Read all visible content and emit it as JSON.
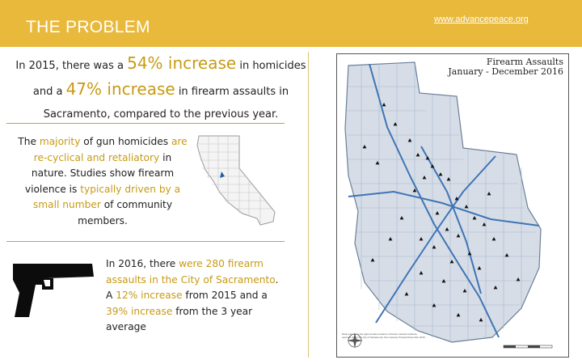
{
  "header": {
    "title": "THE PROBLEM",
    "url": "www.advancepeace.org",
    "color": "#e8b93b"
  },
  "intro": {
    "l1_a": "In 2015, there was a ",
    "l1_b": "54% increase",
    "l1_c": " in homicides",
    "l2_a": "and a ",
    "l2_b": "47% increase",
    "l2_c": " in firearm assaults in",
    "l3": "Sacramento, compared to the previous year."
  },
  "para2": {
    "t1": "The ",
    "t2": "majority",
    "t3": " of gun homicides ",
    "t4": "are re-cyclical and retaliatory",
    "t5": " in nature. Studies show firearm violence is ",
    "t6": "typically driven by a small number",
    "t7": " of community members."
  },
  "para3": {
    "t1": "In 2016, there ",
    "t2": "were 280 firearm assaults in the City of Sacramento",
    "t3": ". A ",
    "t4": "12% increase",
    "t5": " from 2015 and a ",
    "t6": "39% increase",
    "t7": " from the 3 year average"
  },
  "city_map": {
    "title1": "Firearm Assaults",
    "title2": "January - December 2016",
    "legend": "Data represents the approximate locations of firearm assault incidents reported within the City of Sacramento from January through December 2016."
  },
  "icons": {
    "state_map": "california-map-icon",
    "handgun": "handgun-icon",
    "city": "sacramento-map-icon"
  },
  "colors": {
    "highlight": "#c89a14",
    "text": "#222222"
  }
}
